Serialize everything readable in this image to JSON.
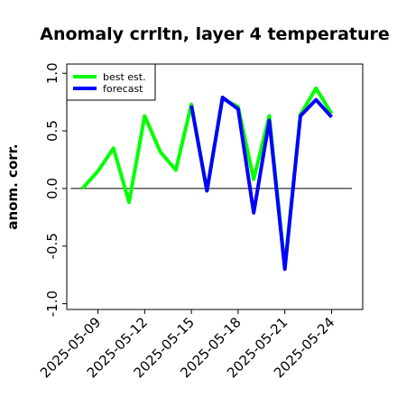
{
  "chart_data": {
    "type": "line",
    "title": "Anomaly crrltn, layer 4 temperature",
    "xlabel": "",
    "ylabel": "anom. corr.",
    "ylim": [
      -1.05,
      1.08
    ],
    "yticks": [
      -1.0,
      -0.5,
      0.0,
      0.5,
      1.0
    ],
    "ytick_labels": [
      "-1.0",
      "-0.5",
      "0.0",
      "0.5",
      "1.0"
    ],
    "x_start": "2025-05-08",
    "x_end": "2025-05-24",
    "xlim": [
      "2025-05-07",
      "2025-05-26"
    ],
    "xticks": [
      "2025-05-09",
      "2025-05-12",
      "2025-05-15",
      "2025-05-18",
      "2025-05-21",
      "2025-05-24"
    ],
    "xtick_labels": [
      "2025-05-09",
      "2025-05-12",
      "2025-05-15",
      "2025-05-18",
      "2025-05-21",
      "2025-05-24"
    ],
    "xtick_colors": [
      "#000000",
      "#000000",
      "#228b22",
      "#000000",
      "#000000",
      "#000000"
    ],
    "hline": 0.0,
    "grid": false,
    "legend": "top-left",
    "series": [
      {
        "name": "best est.",
        "color": "#00ff00",
        "values": [
          0.0,
          0.15,
          0.35,
          -0.12,
          0.63,
          0.32,
          0.16,
          0.73,
          -0.02,
          0.78,
          0.71,
          0.08,
          0.63,
          -0.68,
          0.64,
          0.87,
          0.65
        ]
      },
      {
        "name": "forecast",
        "color": "#0000ff",
        "start": "2025-05-15",
        "values": [
          0.72,
          -0.02,
          0.79,
          0.69,
          -0.21,
          0.59,
          -0.7,
          0.63,
          0.77,
          0.62
        ]
      }
    ]
  }
}
